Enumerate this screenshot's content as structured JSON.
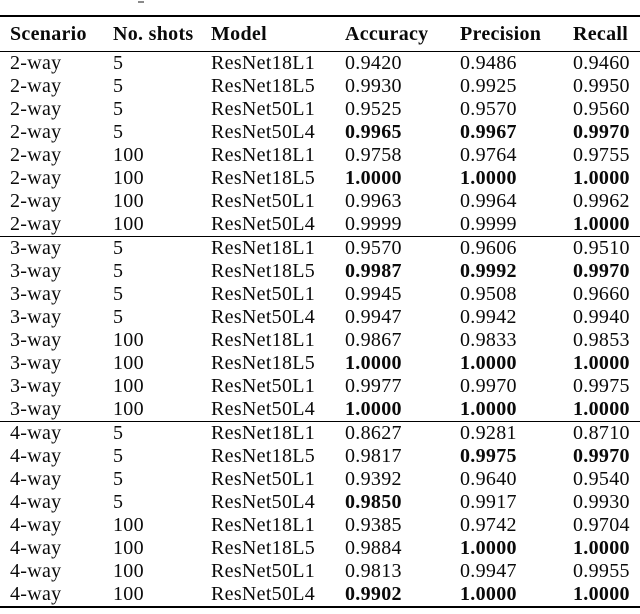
{
  "table": {
    "header": {
      "columns": [
        "Scenario",
        "No. shots",
        "Model",
        "Accuracy",
        "Precision",
        "Recall"
      ]
    },
    "group_breaks": [
      8,
      16
    ],
    "rows": [
      {
        "scenario": "2-way",
        "shots": "5",
        "model": "ResNet18L1",
        "accuracy": "0.9420",
        "precision": "0.9486",
        "recall": "0.9460",
        "bold": []
      },
      {
        "scenario": "2-way",
        "shots": "5",
        "model": "ResNet18L5",
        "accuracy": "0.9930",
        "precision": "0.9925",
        "recall": "0.9950",
        "bold": []
      },
      {
        "scenario": "2-way",
        "shots": "5",
        "model": "ResNet50L1",
        "accuracy": "0.9525",
        "precision": "0.9570",
        "recall": "0.9560",
        "bold": []
      },
      {
        "scenario": "2-way",
        "shots": "5",
        "model": "ResNet50L4",
        "accuracy": "0.9965",
        "precision": "0.9967",
        "recall": "0.9970",
        "bold": [
          "accuracy",
          "precision",
          "recall"
        ]
      },
      {
        "scenario": "2-way",
        "shots": "100",
        "model": "ResNet18L1",
        "accuracy": "0.9758",
        "precision": "0.9764",
        "recall": "0.9755",
        "bold": []
      },
      {
        "scenario": "2-way",
        "shots": "100",
        "model": "ResNet18L5",
        "accuracy": "1.0000",
        "precision": "1.0000",
        "recall": "1.0000",
        "bold": [
          "accuracy",
          "precision",
          "recall"
        ]
      },
      {
        "scenario": "2-way",
        "shots": "100",
        "model": "ResNet50L1",
        "accuracy": "0.9963",
        "precision": "0.9964",
        "recall": "0.9962",
        "bold": []
      },
      {
        "scenario": "2-way",
        "shots": "100",
        "model": "ResNet50L4",
        "accuracy": "0.9999",
        "precision": "0.9999",
        "recall": "1.0000",
        "bold": [
          "recall"
        ]
      },
      {
        "scenario": "3-way",
        "shots": "5",
        "model": "ResNet18L1",
        "accuracy": "0.9570",
        "precision": "0.9606",
        "recall": "0.9510",
        "bold": []
      },
      {
        "scenario": "3-way",
        "shots": "5",
        "model": "ResNet18L5",
        "accuracy": "0.9987",
        "precision": "0.9992",
        "recall": "0.9970",
        "bold": [
          "accuracy",
          "precision",
          "recall"
        ]
      },
      {
        "scenario": "3-way",
        "shots": "5",
        "model": "ResNet50L1",
        "accuracy": "0.9945",
        "precision": "0.9508",
        "recall": "0.9660",
        "bold": []
      },
      {
        "scenario": "3-way",
        "shots": "5",
        "model": "ResNet50L4",
        "accuracy": "0.9947",
        "precision": "0.9942",
        "recall": "0.9940",
        "bold": []
      },
      {
        "scenario": "3-way",
        "shots": "100",
        "model": "ResNet18L1",
        "accuracy": "0.9867",
        "precision": "0.9833",
        "recall": "0.9853",
        "bold": []
      },
      {
        "scenario": "3-way",
        "shots": "100",
        "model": "ResNet18L5",
        "accuracy": "1.0000",
        "precision": "1.0000",
        "recall": "1.0000",
        "bold": [
          "accuracy",
          "precision",
          "recall"
        ]
      },
      {
        "scenario": "3-way",
        "shots": "100",
        "model": "ResNet50L1",
        "accuracy": "0.9977",
        "precision": "0.9970",
        "recall": "0.9975",
        "bold": []
      },
      {
        "scenario": "3-way",
        "shots": "100",
        "model": "ResNet50L4",
        "accuracy": "1.0000",
        "precision": "1.0000",
        "recall": "1.0000",
        "bold": [
          "accuracy",
          "precision",
          "recall"
        ]
      },
      {
        "scenario": "4-way",
        "shots": "5",
        "model": "ResNet18L1",
        "accuracy": "0.8627",
        "precision": "0.9281",
        "recall": "0.8710",
        "bold": []
      },
      {
        "scenario": "4-way",
        "shots": "5",
        "model": "ResNet18L5",
        "accuracy": "0.9817",
        "precision": "0.9975",
        "recall": "0.9970",
        "bold": [
          "precision",
          "recall"
        ]
      },
      {
        "scenario": "4-way",
        "shots": "5",
        "model": "ResNet50L1",
        "accuracy": "0.9392",
        "precision": "0.9640",
        "recall": "0.9540",
        "bold": []
      },
      {
        "scenario": "4-way",
        "shots": "5",
        "model": "ResNet50L4",
        "accuracy": "0.9850",
        "precision": "0.9917",
        "recall": "0.9930",
        "bold": [
          "accuracy"
        ]
      },
      {
        "scenario": "4-way",
        "shots": "100",
        "model": "ResNet18L1",
        "accuracy": "0.9385",
        "precision": "0.9742",
        "recall": "0.9704",
        "bold": []
      },
      {
        "scenario": "4-way",
        "shots": "100",
        "model": "ResNet18L5",
        "accuracy": "0.9884",
        "precision": "1.0000",
        "recall": "1.0000",
        "bold": [
          "precision",
          "recall"
        ]
      },
      {
        "scenario": "4-way",
        "shots": "100",
        "model": "ResNet50L1",
        "accuracy": "0.9813",
        "precision": "0.9947",
        "recall": "0.9955",
        "bold": []
      },
      {
        "scenario": "4-way",
        "shots": "100",
        "model": "ResNet50L4",
        "accuracy": "0.9902",
        "precision": "1.0000",
        "recall": "1.0000",
        "bold": [
          "accuracy",
          "precision",
          "recall"
        ]
      }
    ]
  }
}
